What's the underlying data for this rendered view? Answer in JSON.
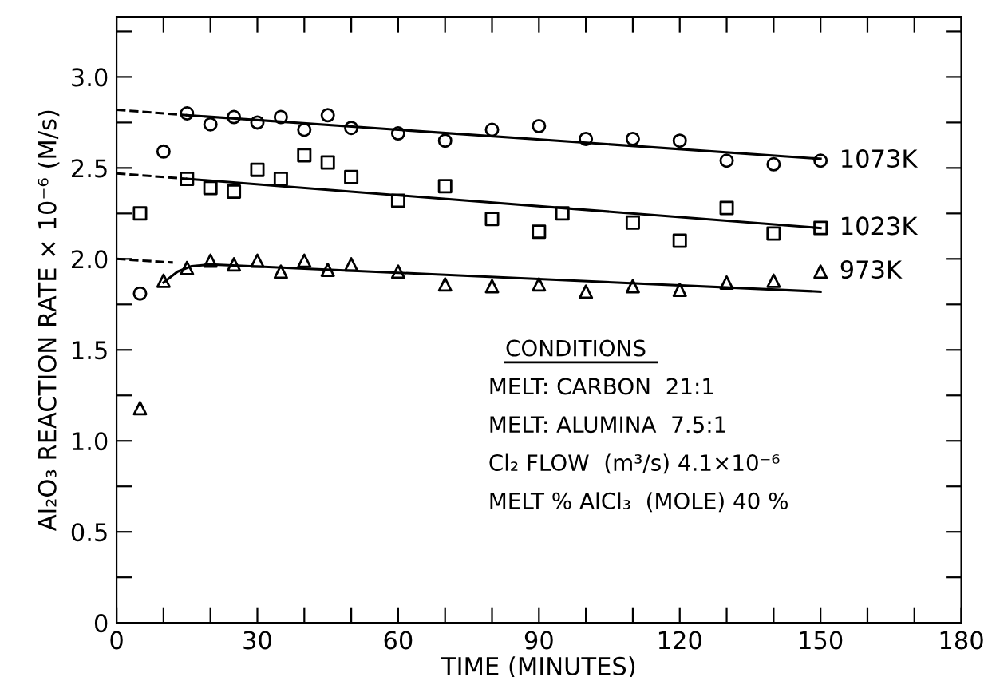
{
  "chart_data": {
    "type": "scatter",
    "xlabel": "TIME (MINUTES)",
    "ylabel": "Al₂O₃ REACTION RATE × 10⁻⁶ (M/s)",
    "xlim": [
      0,
      180
    ],
    "ylim": [
      0,
      3.33
    ],
    "xticks": [
      0,
      {
        "value": 10,
        "label": null
      },
      {
        "value": 20,
        "label": null
      },
      30,
      {
        "value": 40,
        "label": null
      },
      {
        "value": 50,
        "label": null
      },
      60,
      {
        "value": 70,
        "label": null
      },
      {
        "value": 80,
        "label": null
      },
      90,
      {
        "value": 100,
        "label": null
      },
      {
        "value": 110,
        "label": null
      },
      120,
      {
        "value": 130,
        "label": null
      },
      {
        "value": 140,
        "label": null
      },
      150,
      {
        "value": 160,
        "label": null
      },
      {
        "value": 170,
        "label": null
      },
      180
    ],
    "yticks": [
      0,
      {
        "value": 0.25,
        "label": null
      },
      0.5,
      {
        "value": 0.75,
        "label": null
      },
      {
        "value": 1.0,
        "label": "1.0"
      },
      {
        "value": 1.25,
        "label": null
      },
      1.5,
      {
        "value": 1.75,
        "label": null
      },
      {
        "value": 2.0,
        "label": "2.0"
      },
      {
        "value": 2.25,
        "label": null
      },
      2.5,
      {
        "value": 2.75,
        "label": null
      },
      {
        "value": 3.0,
        "label": "3.0"
      },
      {
        "value": 3.25,
        "label": null
      }
    ],
    "grid": false,
    "legend": "right",
    "series": [
      {
        "name": "1073K",
        "marker": "circle",
        "color": "#000000",
        "x": [
          5,
          10,
          15,
          20,
          25,
          30,
          35,
          40,
          45,
          50,
          60,
          70,
          80,
          90,
          100,
          110,
          120,
          130,
          140,
          150
        ],
        "values": [
          1.81,
          2.59,
          2.8,
          2.74,
          2.78,
          2.75,
          2.78,
          2.71,
          2.79,
          2.72,
          2.69,
          2.65,
          2.71,
          2.73,
          2.66,
          2.66,
          2.65,
          2.54,
          2.52,
          2.54
        ]
      },
      {
        "name": "1023K",
        "marker": "square",
        "color": "#000000",
        "x": [
          5,
          15,
          20,
          25,
          30,
          35,
          40,
          45,
          50,
          60,
          70,
          80,
          90,
          95,
          110,
          120,
          130,
          140,
          150
        ],
        "values": [
          2.25,
          2.44,
          2.39,
          2.37,
          2.49,
          2.44,
          2.57,
          2.53,
          2.45,
          2.32,
          2.4,
          2.22,
          2.15,
          2.25,
          2.2,
          2.1,
          2.28,
          2.14,
          2.17
        ]
      },
      {
        "name": "973K",
        "marker": "triangle",
        "color": "#000000",
        "x": [
          5,
          10,
          15,
          20,
          25,
          30,
          35,
          40,
          45,
          50,
          60,
          70,
          80,
          90,
          100,
          110,
          120,
          130,
          140,
          150
        ],
        "values": [
          1.18,
          1.88,
          1.95,
          1.99,
          1.97,
          1.99,
          1.93,
          1.99,
          1.94,
          1.97,
          1.93,
          1.86,
          1.85,
          1.86,
          1.82,
          1.85,
          1.83,
          1.87,
          1.88,
          1.93
        ]
      },
      {
        "type": "line",
        "line_style": "solid",
        "color": "#000000",
        "x": [
          15,
          150
        ],
        "values": [
          2.79,
          2.55
        ]
      },
      {
        "type": "line",
        "line_style": "dashed",
        "color": "#000000",
        "x": [
          0,
          15
        ],
        "values": [
          2.82,
          2.79
        ]
      },
      {
        "type": "line",
        "line_style": "solid",
        "color": "#000000",
        "x": [
          15,
          150
        ],
        "values": [
          2.44,
          2.17
        ]
      },
      {
        "type": "line",
        "line_style": "dashed",
        "color": "#000000",
        "x": [
          0,
          15
        ],
        "values": [
          2.47,
          2.44
        ]
      },
      {
        "type": "line",
        "line_style": "solid",
        "color": "#000000",
        "x": [
          10,
          13,
          16,
          20,
          150
        ],
        "values": [
          1.87,
          1.93,
          1.96,
          1.97,
          1.82
        ]
      },
      {
        "type": "line",
        "line_style": "dashed",
        "color": "#000000",
        "x": [
          0,
          12
        ],
        "values": [
          2.0,
          1.98
        ]
      }
    ],
    "annotations": [
      "CONDITIONS",
      "MELT: CARBON  21:1",
      "MELT: ALUMINA  7.5:1",
      "Cl₂ FLOW  (m³/s) 4.1×10⁻⁶",
      "MELT % AlCl₃  (MOLE) 40 %"
    ]
  }
}
